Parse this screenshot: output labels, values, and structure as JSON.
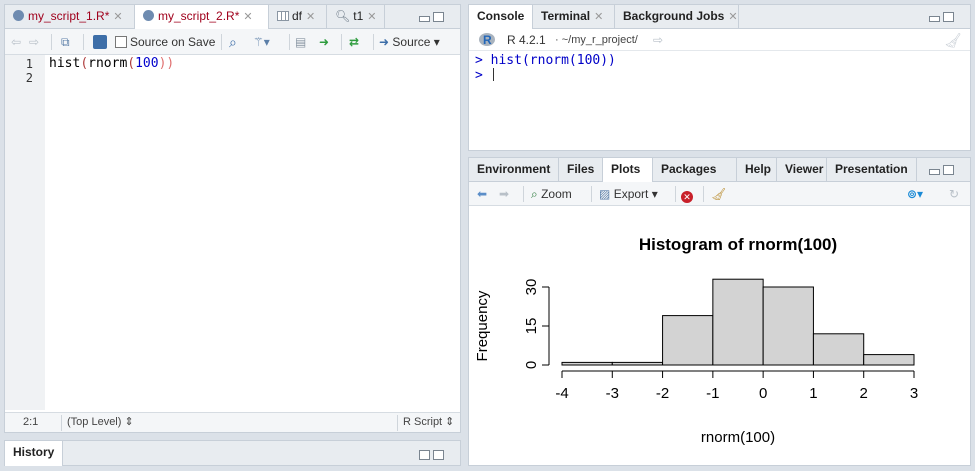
{
  "source_pane": {
    "tabs": [
      {
        "label": "my_script_1.R*",
        "modified": true
      },
      {
        "label": "my_script_2.R*",
        "modified": true
      },
      {
        "label": "df",
        "modified": false
      },
      {
        "label": "t1",
        "modified": false
      }
    ],
    "toolbar": {
      "source_on_save": "Source on Save",
      "source_button": "Source"
    },
    "lines": [
      "1",
      "2"
    ],
    "code": {
      "fn": "hist",
      "open1": "(",
      "inner_fn": "rnorm",
      "open2": "(",
      "arg": "100",
      "close": "))"
    },
    "status": {
      "position": "2:1",
      "scope": "(Top Level) ⇕",
      "filetype": "R Script ⇕"
    }
  },
  "history_pane": {
    "title": "History"
  },
  "console_pane": {
    "tabs": [
      "Console",
      "Terminal",
      "Background Jobs"
    ],
    "r_version": "R 4.2.1",
    "path": "· ~/my_r_project/",
    "lines": [
      {
        "prompt": ">",
        "text": "hist(rnorm(100))"
      },
      {
        "prompt": ">",
        "text": ""
      }
    ]
  },
  "plots_pane": {
    "tabs": [
      "Environment",
      "Files",
      "Plots",
      "Packages",
      "Help",
      "Viewer",
      "Presentation"
    ],
    "active_tab": "Plots",
    "toolbar": {
      "zoom": "Zoom",
      "export": "Export ▾"
    }
  },
  "chart_data": {
    "type": "bar",
    "title": "Histogram of rnorm(100)",
    "xlabel": "rnorm(100)",
    "ylabel": "Frequency",
    "bins": [
      [
        -4,
        -3
      ],
      [
        -3,
        -2
      ],
      [
        -2,
        -1
      ],
      [
        -1,
        0
      ],
      [
        0,
        1
      ],
      [
        1,
        2
      ],
      [
        2,
        3
      ]
    ],
    "values": [
      1,
      1,
      19,
      33,
      30,
      12,
      4
    ],
    "x_ticks": [
      "-4",
      "-3",
      "-2",
      "-1",
      "0",
      "1",
      "2",
      "3"
    ],
    "y_ticks": [
      "0",
      "15",
      "30"
    ],
    "xlim": [
      -4,
      3
    ],
    "ylim": [
      0,
      33
    ],
    "bar_color": "#d3d3d3",
    "grid": false
  }
}
